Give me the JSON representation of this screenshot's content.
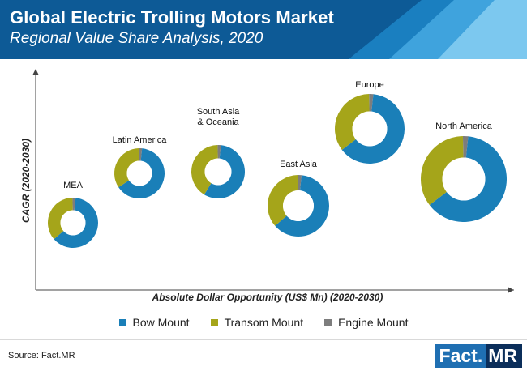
{
  "header": {
    "title": "Global Electric Trolling Motors Market",
    "subtitle": "Regional Value Share Analysis, 2020"
  },
  "chart_data": {
    "type": "donut-bubble",
    "xlabel": "Absolute Dollar Opportunity (US$ Mn) (2020-2030)",
    "ylabel": "CAGR (2020-2030)",
    "legend_position": "bottom",
    "series": [
      {
        "name": "Bow Mount",
        "color": "#1a7fb8"
      },
      {
        "name": "Transom Mount",
        "color": "#a5a51a"
      },
      {
        "name": "Engine Mount",
        "color": "#7d7d7d"
      }
    ],
    "regions": [
      {
        "label": "MEA",
        "label_lines": [
          "MEA"
        ],
        "shares": [
          62,
          36,
          2
        ]
      },
      {
        "label": "Latin America",
        "label_lines": [
          "Latin America"
        ],
        "shares": [
          64,
          34,
          2
        ]
      },
      {
        "label": "South Asia & Oceania",
        "label_lines": [
          "South Asia",
          "& Oceania"
        ],
        "shares": [
          57,
          41,
          2
        ]
      },
      {
        "label": "East Asia",
        "label_lines": [
          "East Asia"
        ],
        "shares": [
          62,
          36,
          2
        ]
      },
      {
        "label": "Europe",
        "label_lines": [
          "Europe"
        ],
        "shares": [
          63,
          35,
          2
        ]
      },
      {
        "label": "North America",
        "label_lines": [
          "North America"
        ],
        "shares": [
          63,
          35,
          2
        ]
      }
    ]
  },
  "legend": {
    "items": [
      {
        "label": "Bow Mount",
        "color": "#1a7fb8"
      },
      {
        "label": "Transom Mount",
        "color": "#a5a51a"
      },
      {
        "label": "Engine Mount",
        "color": "#7d7d7d"
      }
    ]
  },
  "footer": {
    "source": "Source: Fact.MR",
    "brand_left": "Fact.",
    "brand_right": "MR"
  }
}
